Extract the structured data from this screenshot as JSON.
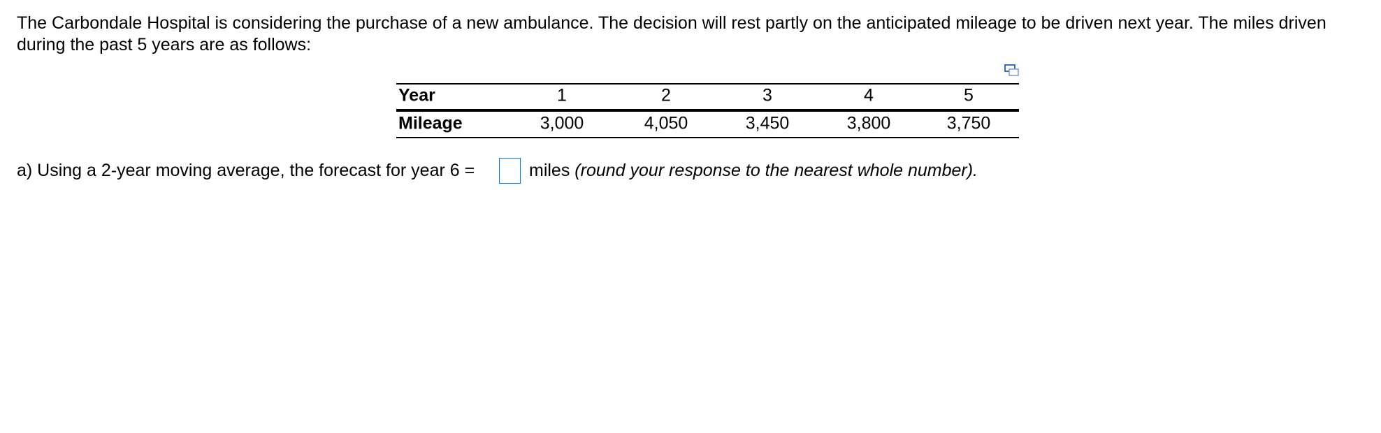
{
  "intro": [
    "The Carbondale Hospital is considering the purchase of a new ambulance. The decision will rest partly on the anticipated mileage to be driven next year. The miles driven",
    "during the past 5 years are as follows:"
  ],
  "table": {
    "rows": [
      [
        "Year",
        "1",
        "2",
        "3",
        "4",
        "5"
      ],
      [
        "Mileage",
        "3,000",
        "4,050",
        "3,450",
        "3,800",
        "3,750"
      ]
    ]
  },
  "question": {
    "prompt": "a) Using a 2-year moving average, the forecast for year 6 =",
    "unit": "miles",
    "hint": "(round your response to the nearest whole number)."
  }
}
